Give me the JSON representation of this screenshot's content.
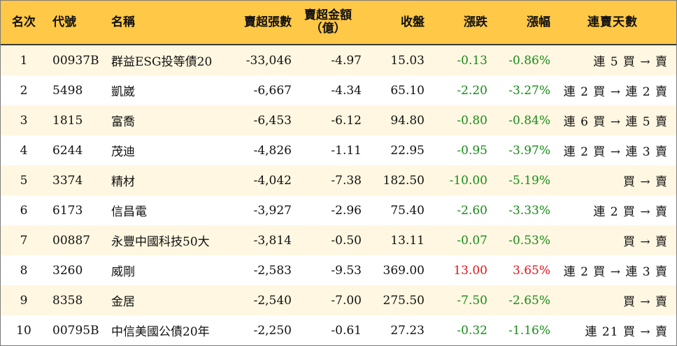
{
  "headers": {
    "rank": "名次",
    "code": "代號",
    "name": "名稱",
    "net_sell_shares": "賣超張數",
    "net_sell_amount_l1": "賣超金額",
    "net_sell_amount_l2": "（億）",
    "close": "收盤",
    "change": "漲跌",
    "change_pct": "漲幅",
    "streak": "連賣天數"
  },
  "colors": {
    "header_bg": "#ffc846",
    "stripe_bg": "#fff7e1",
    "down": "#1a8a1a",
    "up": "#e0141e"
  },
  "rows": [
    {
      "rank": "1",
      "code": "00937B",
      "name": "群益ESG投等債20",
      "shares": "-33,046",
      "amount": "-4.97",
      "close": "15.03",
      "change": "-0.13",
      "pct": "-0.86%",
      "streak": "連 5 買 → 賣",
      "dir": "down"
    },
    {
      "rank": "2",
      "code": "5498",
      "name": "凱崴",
      "shares": "-6,667",
      "amount": "-4.34",
      "close": "65.10",
      "change": "-2.20",
      "pct": "-3.27%",
      "streak": "連 2 買 → 連 2 賣",
      "dir": "down"
    },
    {
      "rank": "3",
      "code": "1815",
      "name": "富喬",
      "shares": "-6,453",
      "amount": "-6.12",
      "close": "94.80",
      "change": "-0.80",
      "pct": "-0.84%",
      "streak": "連 6 買 → 連 5 賣",
      "dir": "down"
    },
    {
      "rank": "4",
      "code": "6244",
      "name": "茂迪",
      "shares": "-4,826",
      "amount": "-1.11",
      "close": "22.95",
      "change": "-0.95",
      "pct": "-3.97%",
      "streak": "連 2 買 → 連 3 賣",
      "dir": "down"
    },
    {
      "rank": "5",
      "code": "3374",
      "name": "精材",
      "shares": "-4,042",
      "amount": "-7.38",
      "close": "182.50",
      "change": "-10.00",
      "pct": "-5.19%",
      "streak": "買 → 賣",
      "dir": "down"
    },
    {
      "rank": "6",
      "code": "6173",
      "name": "信昌電",
      "shares": "-3,927",
      "amount": "-2.96",
      "close": "75.40",
      "change": "-2.60",
      "pct": "-3.33%",
      "streak": "連 2 買 → 賣",
      "dir": "down"
    },
    {
      "rank": "7",
      "code": "00887",
      "name": "永豐中國科技50大",
      "shares": "-3,814",
      "amount": "-0.50",
      "close": "13.11",
      "change": "-0.07",
      "pct": "-0.53%",
      "streak": "買 → 賣",
      "dir": "down"
    },
    {
      "rank": "8",
      "code": "3260",
      "name": "威剛",
      "shares": "-2,583",
      "amount": "-9.53",
      "close": "369.00",
      "change": "13.00",
      "pct": "3.65%",
      "streak": "連 2 買 → 連 3 賣",
      "dir": "up"
    },
    {
      "rank": "9",
      "code": "8358",
      "name": "金居",
      "shares": "-2,540",
      "amount": "-7.00",
      "close": "275.50",
      "change": "-7.50",
      "pct": "-2.65%",
      "streak": "買 → 賣",
      "dir": "down"
    },
    {
      "rank": "10",
      "code": "00795B",
      "name": "中信美國公債20年",
      "shares": "-2,250",
      "amount": "-0.61",
      "close": "27.23",
      "change": "-0.32",
      "pct": "-1.16%",
      "streak": "連 21 買 → 賣",
      "dir": "down"
    }
  ]
}
